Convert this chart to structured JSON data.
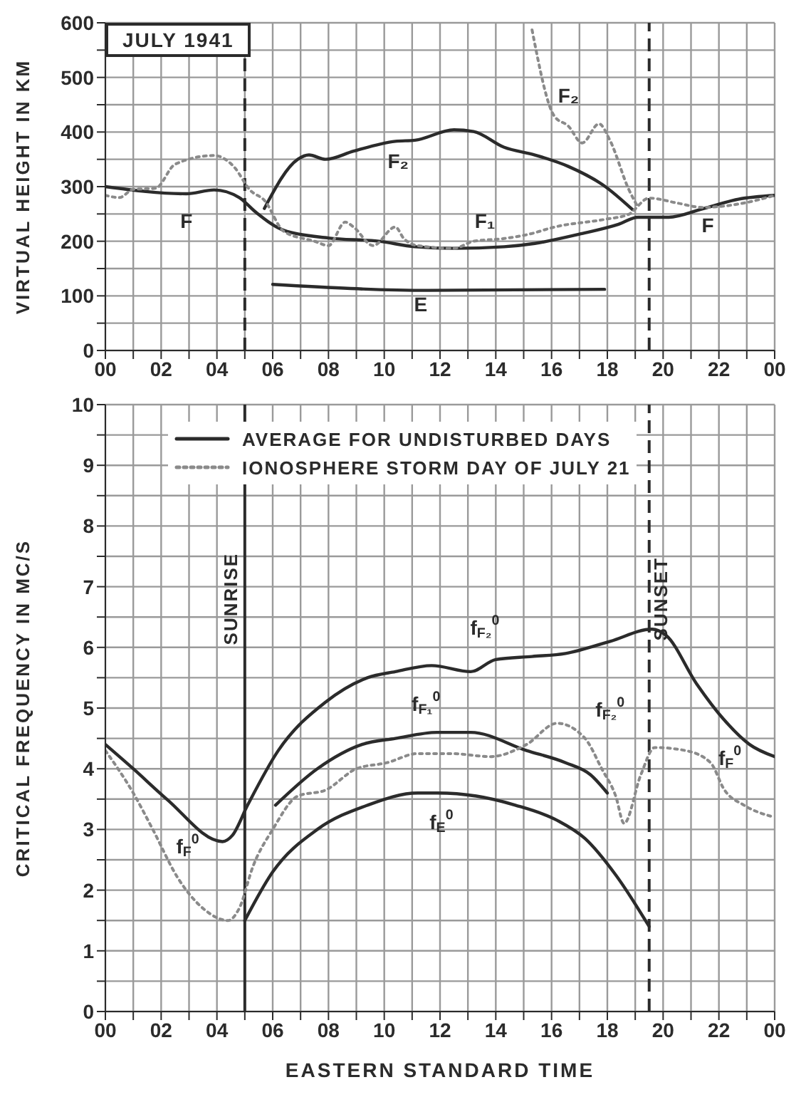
{
  "chart_data": [
    {
      "type": "line",
      "ylabel": "VIRTUAL HEIGHT IN KM",
      "annotations": [
        "JULY 1941",
        "F",
        "F",
        "F₂",
        "F₁",
        "E",
        "F₂"
      ],
      "xlim": [
        0,
        24
      ],
      "xticks": [
        {
          "value": 0,
          "label": "00"
        },
        {
          "value": 1,
          "label": null
        },
        {
          "value": 2,
          "label": "02"
        },
        {
          "value": 3,
          "label": null
        },
        {
          "value": 4,
          "label": "04"
        },
        {
          "value": 5,
          "label": null
        },
        {
          "value": 6,
          "label": "06"
        },
        {
          "value": 7,
          "label": null
        },
        {
          "value": 8,
          "label": "08"
        },
        {
          "value": 9,
          "label": null
        },
        {
          "value": 10,
          "label": "10"
        },
        {
          "value": 11,
          "label": null
        },
        {
          "value": 12,
          "label": "12"
        },
        {
          "value": 13,
          "label": null
        },
        {
          "value": 14,
          "label": "14"
        },
        {
          "value": 15,
          "label": null
        },
        {
          "value": 16,
          "label": "16"
        },
        {
          "value": 17,
          "label": null
        },
        {
          "value": 18,
          "label": "18"
        },
        {
          "value": 19,
          "label": null
        },
        {
          "value": 20,
          "label": "20"
        },
        {
          "value": 21,
          "label": null
        },
        {
          "value": 22,
          "label": "22"
        },
        {
          "value": 23,
          "label": null
        },
        {
          "value": 24,
          "label": "00"
        }
      ],
      "ylim": [
        0,
        600
      ],
      "yticks": [
        0,
        {
          "value": 50,
          "label": null
        },
        100,
        {
          "value": 150,
          "label": null
        },
        200,
        {
          "value": 250,
          "label": null
        },
        300,
        {
          "value": 350,
          "label": null
        },
        400,
        {
          "value": 450,
          "label": null
        },
        500,
        {
          "value": 550,
          "label": null
        },
        600
      ],
      "grid": true,
      "ref_lines": [
        {
          "axis": "x",
          "value": 5,
          "line_style": "dashed",
          "color": "#2b2b2b"
        },
        {
          "axis": "x",
          "value": 19.5,
          "line_style": "dashed",
          "color": "#2b2b2b"
        }
      ],
      "series": [
        {
          "color": "#2b2b2b",
          "line_style": "solid",
          "x": [
            0,
            2.9,
            3.9,
            4.8,
            5.4,
            6.4,
            8,
            9.8,
            11.1,
            12.5,
            14.3,
            15.4,
            17,
            18.4,
            19.1,
            20.2,
            21.4,
            22.7,
            24
          ],
          "values": [
            300,
            287,
            294,
            280,
            253,
            220,
            206,
            200,
            190,
            187,
            190,
            196,
            213,
            231,
            244,
            244,
            259,
            277,
            284
          ]
        },
        {
          "color": "#2b2b2b",
          "line_style": "solid",
          "x": [
            5.7,
            6.9,
            7.3,
            7.9,
            8.9,
            10.4,
            11.1,
            12.5,
            13.2,
            14.3,
            15.4,
            16.6,
            17.9,
            18.9
          ],
          "values": [
            260,
            350,
            358,
            350,
            365,
            383,
            385,
            404,
            401,
            372,
            358,
            337,
            301,
            258
          ]
        },
        {
          "color": "#2b2b2b",
          "line_style": "solid",
          "x": [
            6,
            11.6,
            17.9
          ],
          "values": [
            121,
            110,
            112
          ]
        },
        {
          "color": "#8a8a8a",
          "line_style": "dotted",
          "x": [
            0,
            0.5,
            1,
            1.8,
            2.5,
            3.9,
            4.6,
            5.2,
            5.7,
            6.4,
            7.5,
            8,
            8.6,
            8.9,
            9.6,
            10.4,
            10.7,
            11.2,
            12.5,
            13.2,
            14.3,
            15.2,
            16.1,
            17.9,
            18.75,
            19.5,
            20.5,
            21.4,
            22.9,
            24
          ],
          "values": [
            284,
            280,
            295,
            297,
            341,
            357,
            337,
            293,
            275,
            218,
            200,
            192,
            235,
            226,
            192,
            226,
            205,
            192,
            187,
            200,
            205,
            213,
            226,
            240,
            249,
            279,
            270,
            262,
            270,
            284
          ]
        },
        {
          "color": "#8a8a8a",
          "line_style": "dotted",
          "x": [
            15.3,
            16.1,
            16.6,
            17.1,
            17.7,
            18.1,
            18.75,
            19.1
          ],
          "values": [
            587,
            429,
            411,
            380,
            415,
            384,
            297,
            262
          ]
        }
      ]
    },
    {
      "type": "line",
      "xlabel": "EASTERN STANDARD TIME",
      "ylabel": "CRITICAL FREQUENCY IN MC/S",
      "legend": "top",
      "annotations": [
        "f$_{F}$$^{0}$",
        "f$_{F₂}$$^{0}$",
        "f$_{F₁}$$^{0}$",
        "f$_{E}$$^{0}$",
        "f$_{F₂}$$^{0}$",
        "f$_{F}$$^{0}$"
      ],
      "xlim": [
        0,
        24
      ],
      "xticks": [
        {
          "value": 0,
          "label": "00"
        },
        {
          "value": 1,
          "label": null
        },
        {
          "value": 2,
          "label": "02"
        },
        {
          "value": 3,
          "label": null
        },
        {
          "value": 4,
          "label": "04"
        },
        {
          "value": 5,
          "label": null
        },
        {
          "value": 6,
          "label": "06"
        },
        {
          "value": 7,
          "label": null
        },
        {
          "value": 8,
          "label": "08"
        },
        {
          "value": 9,
          "label": null
        },
        {
          "value": 10,
          "label": "10"
        },
        {
          "value": 11,
          "label": null
        },
        {
          "value": 12,
          "label": "12"
        },
        {
          "value": 13,
          "label": null
        },
        {
          "value": 14,
          "label": "14"
        },
        {
          "value": 15,
          "label": null
        },
        {
          "value": 16,
          "label": "16"
        },
        {
          "value": 17,
          "label": null
        },
        {
          "value": 18,
          "label": "18"
        },
        {
          "value": 19,
          "label": null
        },
        {
          "value": 20,
          "label": "20"
        },
        {
          "value": 21,
          "label": null
        },
        {
          "value": 22,
          "label": "22"
        },
        {
          "value": 23,
          "label": null
        },
        {
          "value": 24,
          "label": "00"
        }
      ],
      "ylim": [
        0,
        10
      ],
      "yticks": [
        0,
        {
          "value": 0.5,
          "label": null
        },
        1,
        {
          "value": 1.5,
          "label": null
        },
        2,
        {
          "value": 2.5,
          "label": null
        },
        3,
        {
          "value": 3.5,
          "label": null
        },
        4,
        {
          "value": 4.5,
          "label": null
        },
        5,
        {
          "value": 5.5,
          "label": null
        },
        6,
        {
          "value": 6.5,
          "label": null
        },
        7,
        {
          "value": 7.5,
          "label": null
        },
        8,
        {
          "value": 8.5,
          "label": null
        },
        9,
        {
          "value": 9.5,
          "label": null
        },
        10
      ],
      "grid": true,
      "ref_lines": [
        {
          "axis": "x",
          "value": 5,
          "label": "SUNRISE",
          "line_style": "solid",
          "color": "#2b2b2b"
        },
        {
          "axis": "x",
          "value": 19.5,
          "label": "SUNSET",
          "line_style": "dashed",
          "color": "#2b2b2b"
        }
      ],
      "series": [
        {
          "name": "AVERAGE FOR UNDISTURBED DAYS",
          "color": "#2b2b2b",
          "line_style": "solid",
          "x": [
            0,
            1,
            2.2,
            4.2,
            4.55,
            5.1,
            6.2,
            7.9,
            9.4,
            10.4,
            11.7,
            13.1,
            14,
            15.3,
            16.5,
            18.1,
            19.6,
            20.1,
            21.2,
            22.2,
            23.1,
            24
          ],
          "values": [
            4.4,
            4.0,
            3.5,
            2.8,
            2.9,
            3.4,
            4.3,
            5.1,
            5.5,
            5.6,
            5.7,
            5.6,
            5.8,
            5.85,
            5.9,
            6.1,
            6.3,
            6.2,
            5.4,
            4.8,
            4.4,
            4.2
          ]
        },
        {
          "color": "#2b2b2b",
          "line_style": "solid",
          "x": [
            6.1,
            7.6,
            9.2,
            10.4,
            11.9,
            13.1,
            15.1,
            16.5,
            17.4,
            18
          ],
          "values": [
            3.4,
            4.0,
            4.4,
            4.5,
            4.6,
            4.6,
            4.3,
            4.1,
            3.9,
            3.6
          ]
        },
        {
          "color": "#2b2b2b",
          "line_style": "solid",
          "x": [
            5,
            6,
            7.6,
            9.4,
            11.2,
            11.9,
            13.3,
            14.7,
            16.2,
            17.2,
            18.3,
            19.5
          ],
          "values": [
            1.5,
            2.3,
            3.0,
            3.4,
            3.6,
            3.6,
            3.55,
            3.4,
            3.15,
            2.85,
            2.25,
            1.4
          ]
        },
        {
          "name": "IONOSPHERE STORM DAY OF JULY 21",
          "color": "#8a8a8a",
          "line_style": "dotted",
          "x": [
            0,
            1,
            1.7,
            2.6,
            3.5,
            4.4,
            4.8,
            5.3,
            6,
            6.9,
            7.9,
            9,
            10.1,
            11.2,
            12.4,
            13.8,
            15.1,
            16.2,
            17.2,
            17.8,
            18.3,
            18.6,
            19.2,
            19.7,
            20.8,
            21.7,
            22.2,
            22.9,
            24
          ],
          "values": [
            4.3,
            3.6,
            3.0,
            2.2,
            1.7,
            1.5,
            1.7,
            2.4,
            3.0,
            3.55,
            3.65,
            4.0,
            4.1,
            4.25,
            4.25,
            4.2,
            4.4,
            4.75,
            4.5,
            4.0,
            3.55,
            3.1,
            3.9,
            4.35,
            4.3,
            4.1,
            3.65,
            3.4,
            3.2
          ]
        }
      ]
    }
  ]
}
